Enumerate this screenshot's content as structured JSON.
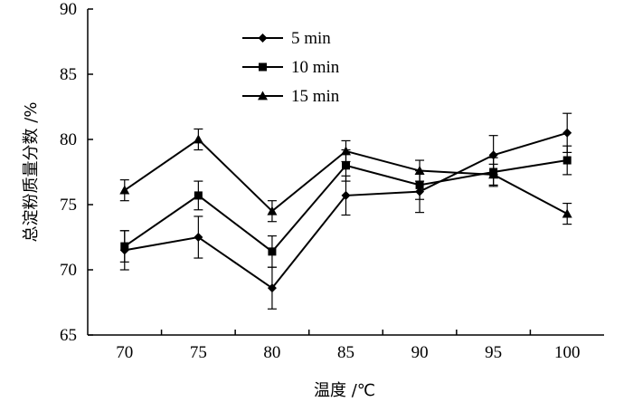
{
  "chart_data": {
    "type": "line",
    "title": "",
    "xlabel": "温度 /℃",
    "ylabel": "总淀粉质量分数 /%",
    "categories": [
      "70",
      "75",
      "80",
      "85",
      "90",
      "95",
      "100"
    ],
    "ylim": [
      65,
      90
    ],
    "yticks": [
      "65",
      "70",
      "75",
      "80",
      "85",
      "90"
    ],
    "grid": false,
    "legend_position": "top-left",
    "series": [
      {
        "name": "5 min",
        "marker": "diamond",
        "values": [
          71.5,
          72.5,
          68.6,
          75.7,
          76.0,
          78.8,
          80.5
        ],
        "errors": [
          1.5,
          1.6,
          1.6,
          1.5,
          1.6,
          1.5,
          1.5
        ]
      },
      {
        "name": "10 min",
        "marker": "square",
        "values": [
          71.8,
          75.7,
          71.4,
          78.0,
          76.5,
          77.5,
          78.4
        ],
        "errors": [
          1.2,
          1.1,
          1.2,
          1.2,
          1.1,
          1.1,
          1.1
        ]
      },
      {
        "name": "15 min",
        "marker": "triangle",
        "values": [
          76.1,
          80.0,
          74.5,
          79.1,
          77.6,
          77.3,
          74.3
        ],
        "errors": [
          0.8,
          0.8,
          0.8,
          0.8,
          0.8,
          0.8,
          0.8
        ]
      }
    ]
  }
}
